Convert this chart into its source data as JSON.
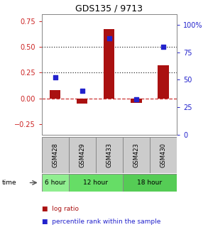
{
  "title": "GDS135 / 9713",
  "samples": [
    "GSM428",
    "GSM429",
    "GSM433",
    "GSM423",
    "GSM430"
  ],
  "log_ratio": [
    0.08,
    -0.05,
    0.67,
    -0.04,
    0.32
  ],
  "percentile_rank": [
    52,
    40,
    88,
    32,
    80
  ],
  "time_groups": [
    {
      "label": "6 hour",
      "samples": [
        "GSM428"
      ],
      "color": "#90EE90"
    },
    {
      "label": "12 hour",
      "samples": [
        "GSM429",
        "GSM433"
      ],
      "color": "#66DD66"
    },
    {
      "label": "18 hour",
      "samples": [
        "GSM423",
        "GSM430"
      ],
      "color": "#55CC55"
    }
  ],
  "bar_color": "#AA1111",
  "dot_color": "#2222CC",
  "ylim_left": [
    -0.35,
    0.82
  ],
  "ylim_right": [
    0,
    110
  ],
  "yticks_left": [
    -0.25,
    0.0,
    0.25,
    0.5,
    0.75
  ],
  "yticks_right": [
    0,
    25,
    50,
    75,
    100
  ],
  "hlines": [
    0.0,
    0.25,
    0.5
  ],
  "hline_styles": [
    "dashed",
    "dotted",
    "dotted"
  ],
  "hline_colors": [
    "#CC3333",
    "#333333",
    "#333333"
  ],
  "bg_color": "#ffffff",
  "plot_bg": "#ffffff",
  "left_tick_color": "#CC2222",
  "right_tick_color": "#2222CC",
  "legend_items": [
    {
      "label": "log ratio",
      "color": "#AA1111"
    },
    {
      "label": "percentile rank within the sample",
      "color": "#2222CC"
    }
  ],
  "sample_box_color": "#CCCCCC",
  "sample_box_edge": "#888888"
}
